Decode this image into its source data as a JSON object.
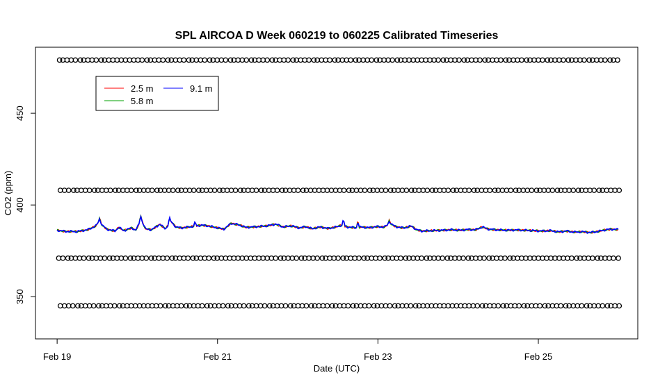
{
  "chart_data": {
    "type": "line",
    "title": "SPL AIRCOA D  Week 060219 to 060225  Calibrated Timeseries",
    "xlabel": "Date (UTC)",
    "ylabel": "CO2 (ppm)",
    "x_ticks": [
      {
        "label": "Feb 19",
        "day": 0
      },
      {
        "label": "Feb 21",
        "day": 2
      },
      {
        "label": "Feb 23",
        "day": 4
      },
      {
        "label": "Feb 25",
        "day": 6
      }
    ],
    "y_ticks": [
      350,
      400,
      450
    ],
    "xlim_days": [
      -0.27,
      7.24
    ],
    "ylim": [
      327,
      486
    ],
    "legend": {
      "placement": "top-left",
      "entries": [
        {
          "name": "2.5 m",
          "color": "#ff0000"
        },
        {
          "name": "5.8 m",
          "color": "#00a000"
        },
        {
          "name": "9.1 m",
          "color": "#0000ff"
        }
      ]
    },
    "reference_levels": [
      479,
      408,
      371,
      345
    ],
    "series_baseline": [
      [
        0.0,
        386.2
      ],
      [
        0.1,
        385.6
      ],
      [
        0.25,
        385.5
      ],
      [
        0.38,
        386.5
      ],
      [
        0.48,
        388.5
      ],
      [
        0.53,
        391.5
      ],
      [
        0.56,
        389.0
      ],
      [
        0.62,
        386.8
      ],
      [
        0.72,
        385.8
      ],
      [
        0.77,
        387.8
      ],
      [
        0.83,
        386.0
      ],
      [
        0.93,
        387.5
      ],
      [
        0.98,
        386.2
      ],
      [
        1.05,
        392.0
      ],
      [
        1.1,
        387.0
      ],
      [
        1.18,
        386.5
      ],
      [
        1.28,
        389.5
      ],
      [
        1.35,
        387.0
      ],
      [
        1.42,
        391.0
      ],
      [
        1.48,
        388.0
      ],
      [
        1.55,
        387.5
      ],
      [
        1.68,
        388.2
      ],
      [
        1.8,
        389.0
      ],
      [
        1.88,
        388.6
      ],
      [
        1.98,
        387.7
      ],
      [
        2.08,
        386.8
      ],
      [
        2.17,
        390.0
      ],
      [
        2.28,
        389.0
      ],
      [
        2.35,
        387.8
      ],
      [
        2.5,
        388.2
      ],
      [
        2.62,
        388.6
      ],
      [
        2.72,
        389.6
      ],
      [
        2.82,
        388.0
      ],
      [
        2.92,
        388.6
      ],
      [
        3.02,
        387.5
      ],
      [
        3.1,
        388.2
      ],
      [
        3.18,
        387.0
      ],
      [
        3.28,
        388.0
      ],
      [
        3.38,
        387.2
      ],
      [
        3.48,
        388.0
      ],
      [
        3.55,
        389.0
      ],
      [
        3.62,
        388.0
      ],
      [
        3.72,
        387.6
      ],
      [
        3.8,
        388.0
      ],
      [
        3.88,
        387.6
      ],
      [
        3.98,
        388.2
      ],
      [
        4.08,
        388.0
      ],
      [
        4.15,
        390.0
      ],
      [
        4.22,
        388.2
      ],
      [
        4.32,
        387.5
      ],
      [
        4.42,
        388.5
      ],
      [
        4.48,
        386.5
      ],
      [
        4.55,
        385.8
      ],
      [
        4.68,
        386.0
      ],
      [
        4.8,
        386.2
      ],
      [
        4.92,
        386.5
      ],
      [
        5.02,
        386.2
      ],
      [
        5.12,
        386.6
      ],
      [
        5.22,
        386.5
      ],
      [
        5.3,
        388.0
      ],
      [
        5.38,
        386.8
      ],
      [
        5.5,
        386.4
      ],
      [
        5.62,
        386.2
      ],
      [
        5.72,
        386.4
      ],
      [
        5.82,
        386.2
      ],
      [
        5.95,
        386.0
      ],
      [
        6.05,
        385.8
      ],
      [
        6.15,
        386.0
      ],
      [
        6.25,
        385.3
      ],
      [
        6.35,
        385.8
      ],
      [
        6.45,
        385.2
      ],
      [
        6.55,
        385.4
      ],
      [
        6.65,
        385.0
      ],
      [
        6.75,
        385.6
      ],
      [
        6.82,
        386.3
      ],
      [
        6.9,
        386.8
      ],
      [
        7.0,
        386.6
      ]
    ],
    "spikes": [
      {
        "day": 0.53,
        "value": 393.0
      },
      {
        "day": 1.04,
        "value": 394.5
      },
      {
        "day": 1.4,
        "value": 393.5
      },
      {
        "day": 3.57,
        "value": 392.5
      },
      {
        "day": 3.75,
        "value": 391.5
      },
      {
        "day": 4.14,
        "value": 391.5
      },
      {
        "day": 1.72,
        "value": 391.0
      }
    ]
  }
}
